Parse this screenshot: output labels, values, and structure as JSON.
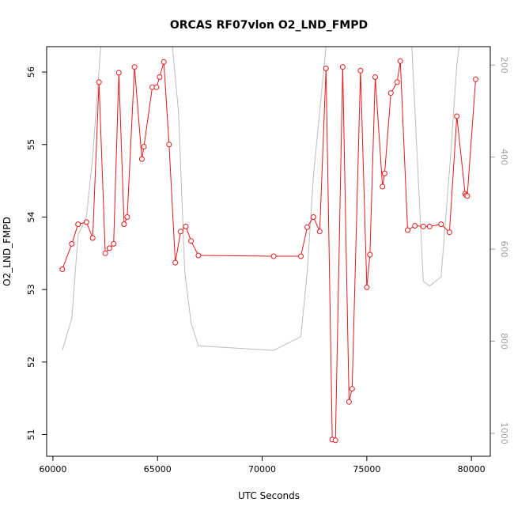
{
  "chart_data": {
    "type": "line",
    "title": "ORCAS RF07vlon O2_LND_FMPD",
    "xlabel": "UTC Seconds",
    "ylabel": "O2_LND_FMPD",
    "xlim": [
      59700,
      80900
    ],
    "ylim": [
      50.7,
      56.35
    ],
    "x_ticks": [
      60000,
      65000,
      70000,
      75000,
      80000
    ],
    "y_ticks": [
      51,
      52,
      53,
      54,
      55,
      56
    ],
    "secondary_axis": {
      "side": "right",
      "ylim": [
        1050,
        160
      ],
      "ticks": [
        200,
        400,
        600,
        800,
        1000
      ]
    },
    "series": [
      {
        "color": "#e41a1c",
        "x": [
          60450,
          60900,
          61200,
          61600,
          61900,
          62200,
          62500,
          62700,
          62900,
          63150,
          63400,
          63550,
          63900,
          64250,
          64350,
          64750,
          64950,
          65100,
          65300,
          65550,
          65850,
          66100,
          66350,
          66600,
          66950,
          70550,
          71850,
          72150,
          72450,
          72750,
          73050,
          73350,
          73500,
          73850,
          74150,
          74300,
          74700,
          75000,
          75150,
          75400,
          75750,
          75850,
          76150,
          76450,
          76600,
          76950,
          77300,
          77700,
          78000,
          78550,
          78950,
          79300,
          79700,
          79750,
          79800,
          80200
        ],
        "values": [
          53.28,
          53.63,
          53.9,
          53.93,
          53.71,
          55.86,
          53.5,
          53.57,
          53.63,
          55.99,
          53.9,
          54.0,
          56.07,
          54.8,
          54.97,
          55.79,
          55.79,
          55.93,
          56.14,
          55.0,
          53.37,
          53.8,
          53.87,
          53.67,
          53.47,
          53.46,
          53.46,
          53.86,
          54.0,
          53.8,
          56.05,
          50.93,
          50.92,
          56.07,
          51.45,
          51.63,
          56.02,
          53.03,
          53.48,
          55.93,
          54.42,
          54.6,
          55.71,
          55.86,
          56.15,
          53.82,
          53.88,
          53.87,
          53.87,
          53.9,
          53.79,
          55.39,
          54.32,
          54.3,
          54.29,
          55.9
        ]
      },
      {
        "color": "#bdbdbd",
        "axis": "right",
        "x": [
          60450,
          60900,
          61200,
          61600,
          61900,
          62300,
          62500,
          65500,
          66000,
          66300,
          66600,
          66950,
          70550,
          71850,
          72150,
          72450,
          73050,
          73350,
          73500,
          73850,
          74150,
          74300,
          74700,
          75000,
          75400,
          76300,
          76600,
          77150,
          77700,
          78000,
          78550,
          79000,
          79300,
          79700,
          80100
        ],
        "values": [
          820,
          750,
          570,
          530,
          400,
          150,
          60,
          60,
          300,
          650,
          760,
          810,
          820,
          790,
          650,
          440,
          160,
          60,
          60,
          160,
          60,
          60,
          60,
          60,
          60,
          60,
          60,
          160,
          670,
          680,
          660,
          400,
          200,
          60,
          60
        ]
      }
    ]
  }
}
